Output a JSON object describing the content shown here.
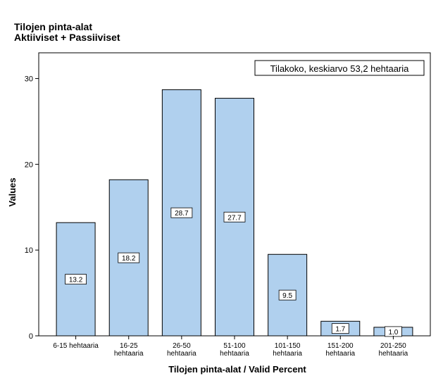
{
  "chart_data": {
    "type": "bar",
    "title": "Tilojen pinta-alat",
    "subtitle": "Aktiiviset + Passiiviset",
    "xlabel": "Tilojen pinta-alat / Valid Percent",
    "ylabel": "Values",
    "annotation": "Tilakoko, keskiarvo 53,2 hehtaaria",
    "categories": [
      [
        "6-15 hehtaaria"
      ],
      [
        "16-25",
        "hehtaaria"
      ],
      [
        "26-50",
        "hehtaaria"
      ],
      [
        "51-100",
        "hehtaaria"
      ],
      [
        "101-150",
        "hehtaaria"
      ],
      [
        "151-200",
        "hehtaaria"
      ],
      [
        "201-250",
        "hehtaaria"
      ]
    ],
    "values": [
      13.2,
      18.2,
      28.7,
      27.7,
      9.5,
      1.7,
      1.0
    ],
    "value_labels": [
      "13.2",
      "18.2",
      "28.7",
      "27.7",
      "9.5",
      "1.7",
      "1.0"
    ],
    "yticks": [
      0,
      10,
      20,
      30
    ],
    "ylim": [
      0,
      33
    ],
    "grid": false,
    "legend": "none",
    "bar_color": "#b0d0ee",
    "bar_edge_color": "#000000"
  }
}
